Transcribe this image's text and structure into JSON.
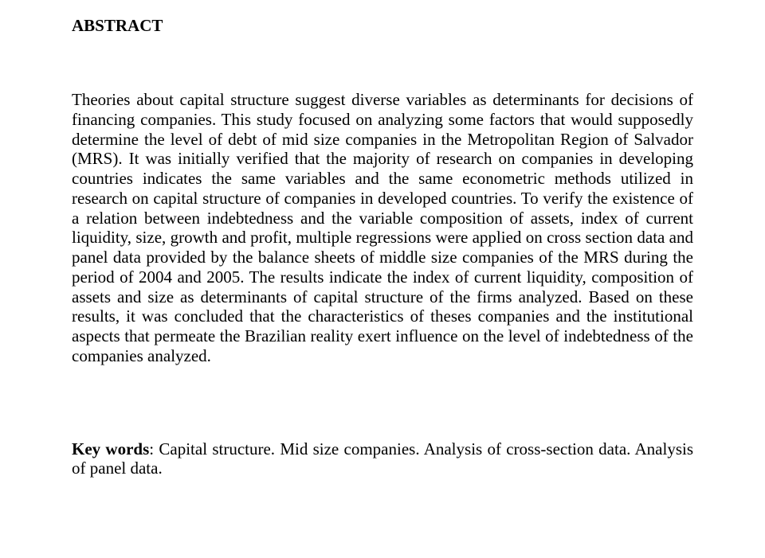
{
  "document": {
    "title": "ABSTRACT",
    "abstract": "Theories about capital structure suggest diverse variables as determinants for decisions of financing companies. This study focused on analyzing some factors that would supposedly determine the level of debt of mid size companies in the Metropolitan Region of Salvador (MRS). It was initially verified that the majority of research on companies in developing countries indicates the same variables and the same econometric methods utilized in research on capital structure of companies in developed countries. To verify the existence of a relation between indebtedness and the variable composition of assets, index of current liquidity, size, growth and profit, multiple regressions were applied on cross section data and panel data provided by the balance sheets of middle size companies of the MRS during the period of 2004 and 2005. The results indicate the index of current liquidity, composition of assets and size as determinants of capital structure of the firms analyzed. Based on these results, it was concluded that the characteristics of theses companies and the institutional aspects that permeate the Brazilian reality exert influence on the level of indebtedness of the companies analyzed.",
    "keywords_label": "Key words",
    "keywords_text": ": Capital structure. Mid size companies. Analysis of cross-section data. Analysis of panel data.",
    "text_color": "#000000",
    "background_color": "#ffffff",
    "font_family": "Times New Roman",
    "title_fontsize": 21,
    "body_fontsize": 21
  }
}
